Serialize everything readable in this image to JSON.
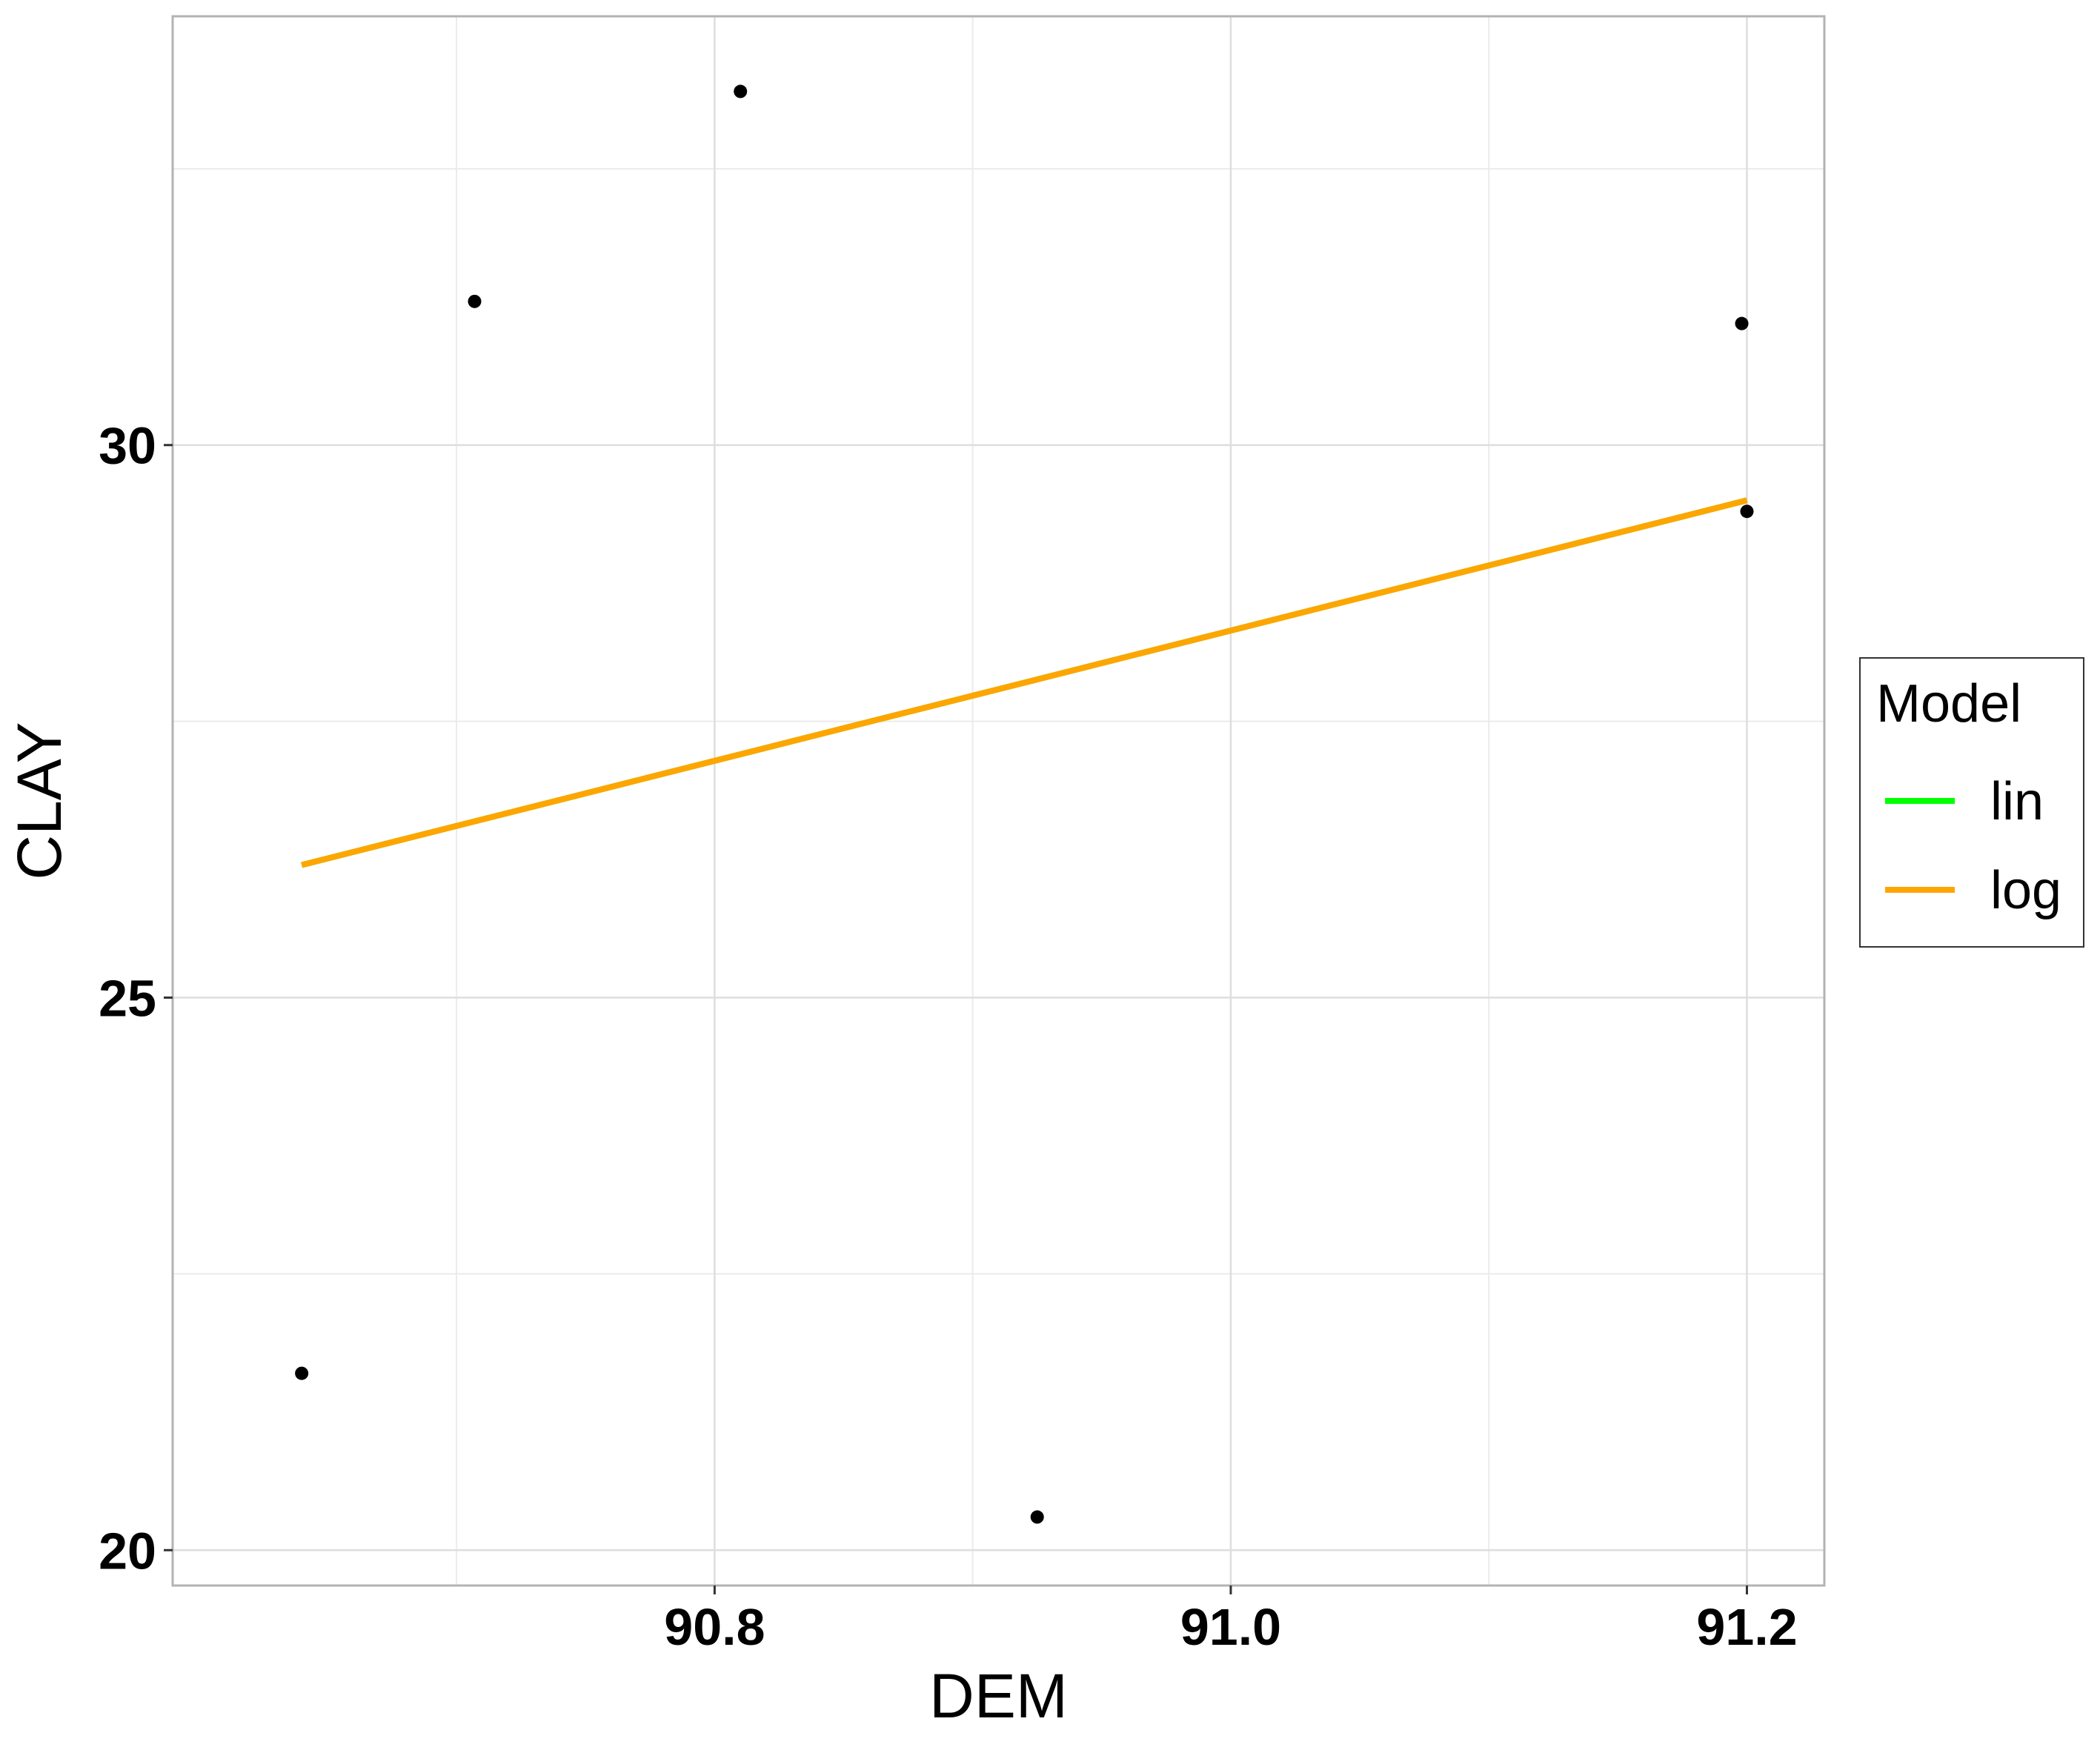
{
  "chart_data": {
    "type": "scatter",
    "xlabel": "DEM",
    "ylabel": "CLAY",
    "xlim": [
      90.59,
      91.23
    ],
    "ylim": [
      19.68,
      33.88
    ],
    "grid": true,
    "x_ticks": [
      90.8,
      91.0,
      91.2
    ],
    "x_tick_labels": [
      "90.8",
      "91.0",
      "91.2"
    ],
    "y_ticks": [
      20,
      25,
      30
    ],
    "y_tick_labels": [
      "20",
      "25",
      "30"
    ],
    "x_minor": [
      90.7,
      90.9,
      91.1
    ],
    "y_minor": [
      22.5,
      27.5,
      32.5
    ],
    "points": [
      {
        "x": 90.64,
        "y": 21.6
      },
      {
        "x": 90.707,
        "y": 31.3
      },
      {
        "x": 90.81,
        "y": 33.2
      },
      {
        "x": 90.925,
        "y": 20.3
      },
      {
        "x": 91.198,
        "y": 31.1
      },
      {
        "x": 91.2,
        "y": 29.4
      }
    ],
    "series": [
      {
        "name": "lin",
        "color": "#00ff00",
        "line": [
          [
            90.64,
            26.2
          ],
          [
            91.2,
            29.5
          ]
        ]
      },
      {
        "name": "log",
        "color": "#ffa500",
        "line": [
          [
            90.64,
            26.2
          ],
          [
            91.2,
            29.5
          ]
        ]
      }
    ],
    "legend": {
      "title": "Model",
      "placement": "right",
      "entries": [
        {
          "label": "lin",
          "color": "#00ff00"
        },
        {
          "label": "log",
          "color": "#ffa500"
        }
      ]
    }
  }
}
